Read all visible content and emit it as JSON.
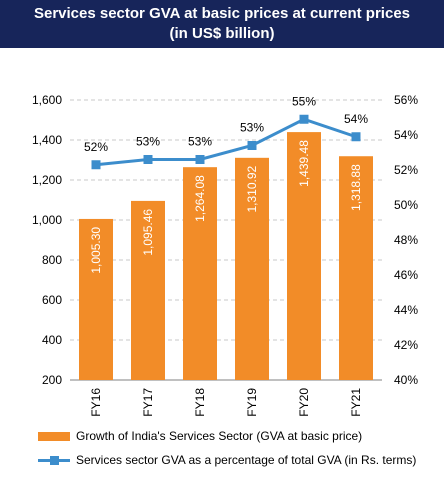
{
  "header": {
    "title_line1": "Services sector GVA at basic prices at current prices",
    "title_line2": "(in US$ billion)"
  },
  "colors": {
    "banner": "#17255a",
    "bar": "#f28c28",
    "line": "#3c8dcc",
    "grid": "#c8c8c8"
  },
  "chart_data": {
    "type": "bar",
    "categories": [
      "FY16",
      "FY17",
      "FY18",
      "FY19",
      "FY20",
      "FY21"
    ],
    "series": [
      {
        "name": "Growth of India's Services Sector (GVA at basic price)",
        "type": "bar",
        "axis": "left",
        "values": [
          1005.3,
          1095.46,
          1264.08,
          1310.92,
          1439.48,
          1318.88
        ],
        "labels": [
          "1,005.30",
          "1,095.46",
          "1,264.08",
          "1,310.92",
          "1,439.48",
          "1,318.88"
        ]
      },
      {
        "name": "Services sector GVA as a percentage of total GVA (in Rs. terms)",
        "type": "line",
        "axis": "right",
        "values": [
          52.3,
          52.6,
          52.6,
          53.4,
          54.9,
          53.9
        ],
        "labels": [
          "52%",
          "53%",
          "53%",
          "53%",
          "55%",
          "54%"
        ]
      }
    ],
    "y_left": {
      "min": 200,
      "max": 1600,
      "ticks": [
        200,
        400,
        600,
        800,
        1000,
        1200,
        1400,
        1600
      ],
      "tick_labels": [
        "200",
        "400",
        "600",
        "800",
        "1,000",
        "1,200",
        "1,400",
        "1,600"
      ]
    },
    "y_right": {
      "min": 40,
      "max": 56,
      "ticks": [
        40,
        42,
        44,
        46,
        48,
        50,
        52,
        54,
        56
      ],
      "tick_labels": [
        "40%",
        "42%",
        "44%",
        "46%",
        "48%",
        "50%",
        "52%",
        "54%",
        "56%"
      ]
    },
    "grid": true,
    "legend": "bottom"
  }
}
